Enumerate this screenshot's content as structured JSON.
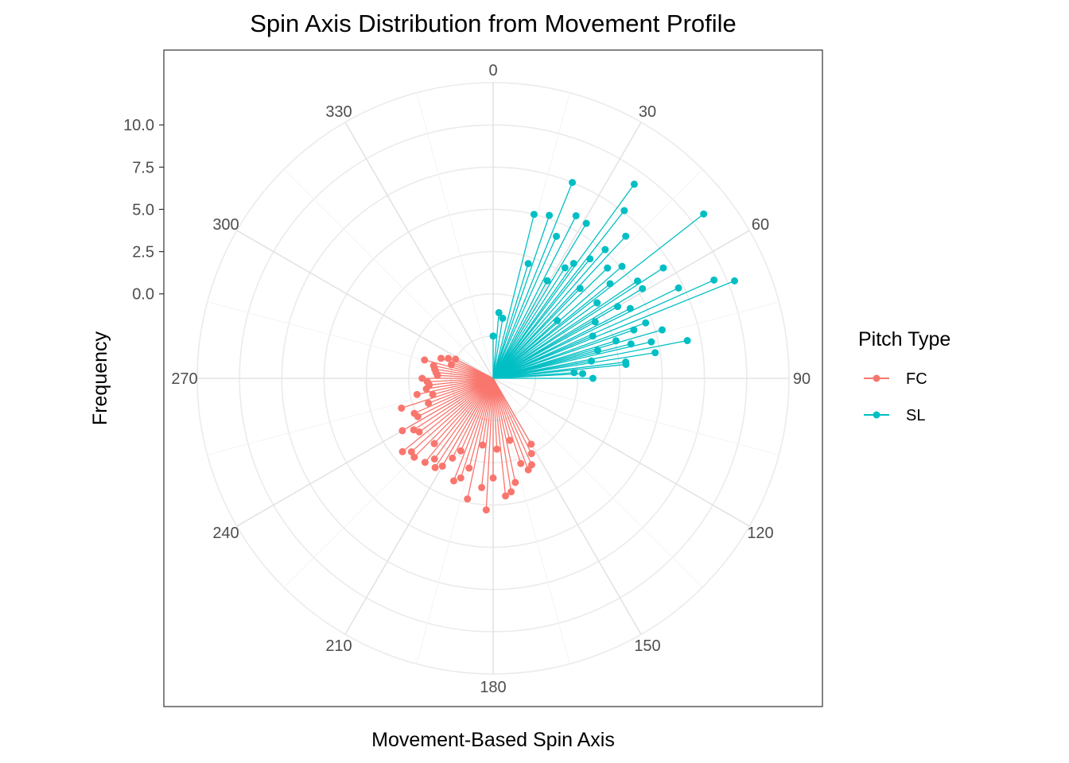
{
  "chart_data": {
    "type": "polar_lollipop",
    "title": "Spin Axis Distribution from Movement Profile",
    "xlabel": "Movement-Based Spin Axis",
    "ylabel": "Frequency",
    "r_ticks": [
      0.0,
      2.5,
      5.0,
      7.5,
      10.0
    ],
    "r_tick_labels": [
      "0.0",
      "2.5",
      "5.0",
      "7.5",
      "10.0"
    ],
    "r_lim": [
      -5,
      12.5
    ],
    "angle_ticks": [
      0,
      30,
      60,
      90,
      120,
      150,
      180,
      210,
      240,
      270,
      300,
      330
    ],
    "angle_tick_labels": [
      "0",
      "30",
      "60",
      "90",
      "120",
      "150",
      "180",
      "210",
      "240",
      "270",
      "300",
      "330"
    ],
    "grid": true,
    "legend": {
      "title": "Pitch Type",
      "position": "right"
    },
    "series": [
      {
        "name": "FC",
        "color": "#F8766D",
        "points": [
          [
            150,
            -0.5
          ],
          [
            153,
            0.0
          ],
          [
            156,
            0.6
          ],
          [
            159,
            0.8
          ],
          [
            162,
            0.3
          ],
          [
            165,
            -1.2
          ],
          [
            168,
            1.3
          ],
          [
            171,
            1.8
          ],
          [
            174,
            2.0
          ],
          [
            177,
            -0.8
          ],
          [
            180,
            0.9
          ],
          [
            183,
            2.8
          ],
          [
            186,
            1.5
          ],
          [
            189,
            -1.0
          ],
          [
            192,
            2.3
          ],
          [
            195,
            0.5
          ],
          [
            198,
            1.2
          ],
          [
            201,
            1.5
          ],
          [
            204,
            -0.3
          ],
          [
            207,
            0.3
          ],
          [
            210,
            1.0
          ],
          [
            213,
            1.3
          ],
          [
            216,
            0.9
          ],
          [
            219,
            1.4
          ],
          [
            222,
            0.2
          ],
          [
            225,
            1.6
          ],
          [
            228,
            1.5
          ],
          [
            231,
            1.9
          ],
          [
            234,
            0.4
          ],
          [
            237,
            0.6
          ],
          [
            240,
            1.2
          ],
          [
            243,
            0.0
          ],
          [
            246,
            0.1
          ],
          [
            249,
            -0.9
          ],
          [
            252,
            0.7
          ],
          [
            255,
            -1.3
          ],
          [
            258,
            -0.4
          ],
          [
            261,
            -1.0
          ],
          [
            264,
            -1.2
          ],
          [
            267,
            -1.1
          ],
          [
            270,
            -0.8
          ],
          [
            273,
            -1.7
          ],
          [
            276,
            -1.6
          ],
          [
            279,
            -1.5
          ],
          [
            282,
            -1.4
          ],
          [
            285,
            -0.8
          ],
          [
            288,
            -2.4
          ],
          [
            291,
            -1.7
          ],
          [
            294,
            -2.1
          ],
          [
            297,
            -2.5
          ]
        ]
      },
      {
        "name": "SL",
        "color": "#00BFC4",
        "points": [
          [
            0,
            -2.5
          ],
          [
            5,
            -1.1
          ],
          [
            9,
            -1.4
          ],
          [
            14,
            5.0
          ],
          [
            17,
            2.1
          ],
          [
            19,
            5.2
          ],
          [
            22,
            7.5
          ],
          [
            24,
            4.2
          ],
          [
            27,
            5.8
          ],
          [
            29,
            1.6
          ],
          [
            31,
            5.7
          ],
          [
            33,
            2.8
          ],
          [
            35,
            3.3
          ],
          [
            36,
            9.2
          ],
          [
            38,
            7.6
          ],
          [
            39,
            4.1
          ],
          [
            41,
            5.1
          ],
          [
            43,
            6.5
          ],
          [
            44,
            2.4
          ],
          [
            46,
            4.4
          ],
          [
            48,
            0.1
          ],
          [
            49,
            5.1
          ],
          [
            51,
            3.9
          ],
          [
            52,
            10.8
          ],
          [
            54,
            2.6
          ],
          [
            56,
            5.3
          ],
          [
            57,
            7.0
          ],
          [
            59,
            5.3
          ],
          [
            60,
            3.5
          ],
          [
            61,
            1.9
          ],
          [
            63,
            4.1
          ],
          [
            64,
            7.2
          ],
          [
            66,
            9.3
          ],
          [
            67,
            1.4
          ],
          [
            68,
            10.4
          ],
          [
            70,
            4.6
          ],
          [
            71,
            3.8
          ],
          [
            73,
            2.6
          ],
          [
            74,
            5.4
          ],
          [
            75,
            1.4
          ],
          [
            76,
            3.4
          ],
          [
            77,
            4.6
          ],
          [
            79,
            6.7
          ],
          [
            80,
            0.9
          ],
          [
            81,
            4.7
          ],
          [
            83,
            2.9
          ],
          [
            84,
            2.9
          ],
          [
            86,
            -0.2
          ],
          [
            87,
            0.3
          ],
          [
            90,
            0.9
          ]
        ]
      }
    ]
  }
}
